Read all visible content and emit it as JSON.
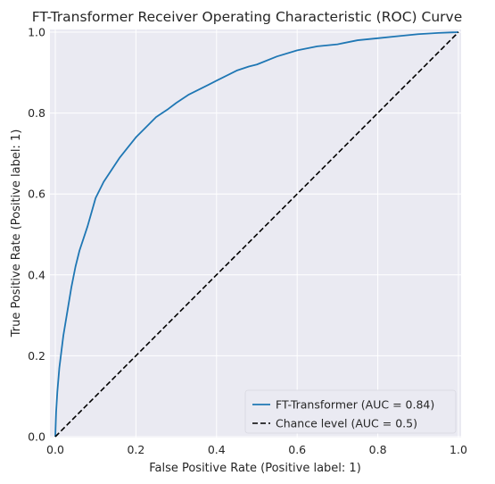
{
  "chart_data": {
    "type": "line",
    "title": "FT-Transformer Receiver Operating Characteristic (ROC) Curve",
    "xlabel": "False Positive Rate (Positive label: 1)",
    "ylabel": "True Positive Rate (Positive label: 1)",
    "xlim": [
      0.0,
      1.0
    ],
    "ylim": [
      0.0,
      1.0
    ],
    "xticks": [
      "0.0",
      "0.2",
      "0.4",
      "0.6",
      "0.8",
      "1.0"
    ],
    "yticks": [
      "0.0",
      "0.2",
      "0.4",
      "0.6",
      "0.8",
      "1.0"
    ],
    "grid": true,
    "legend_position": "lower-right",
    "series": [
      {
        "name": "FT-Transformer (AUC = 0.84)",
        "color": "#1f77b4",
        "style": "solid",
        "x": [
          0.0,
          0.002,
          0.005,
          0.01,
          0.015,
          0.02,
          0.03,
          0.04,
          0.05,
          0.06,
          0.07,
          0.08,
          0.09,
          0.1,
          0.12,
          0.14,
          0.16,
          0.18,
          0.2,
          0.22,
          0.25,
          0.28,
          0.3,
          0.33,
          0.36,
          0.38,
          0.4,
          0.42,
          0.45,
          0.48,
          0.5,
          0.55,
          0.6,
          0.65,
          0.7,
          0.75,
          0.8,
          0.85,
          0.9,
          0.95,
          1.0
        ],
        "y": [
          0.0,
          0.06,
          0.11,
          0.17,
          0.21,
          0.25,
          0.31,
          0.37,
          0.42,
          0.46,
          0.49,
          0.52,
          0.555,
          0.59,
          0.63,
          0.66,
          0.69,
          0.715,
          0.74,
          0.76,
          0.79,
          0.81,
          0.825,
          0.845,
          0.86,
          0.87,
          0.88,
          0.89,
          0.905,
          0.915,
          0.92,
          0.94,
          0.955,
          0.965,
          0.97,
          0.98,
          0.985,
          0.99,
          0.995,
          0.998,
          1.0
        ]
      },
      {
        "name": "Chance level (AUC = 0.5)",
        "color": "#000000",
        "style": "dashed",
        "x": [
          0.0,
          1.0
        ],
        "y": [
          0.0,
          1.0
        ]
      }
    ]
  }
}
